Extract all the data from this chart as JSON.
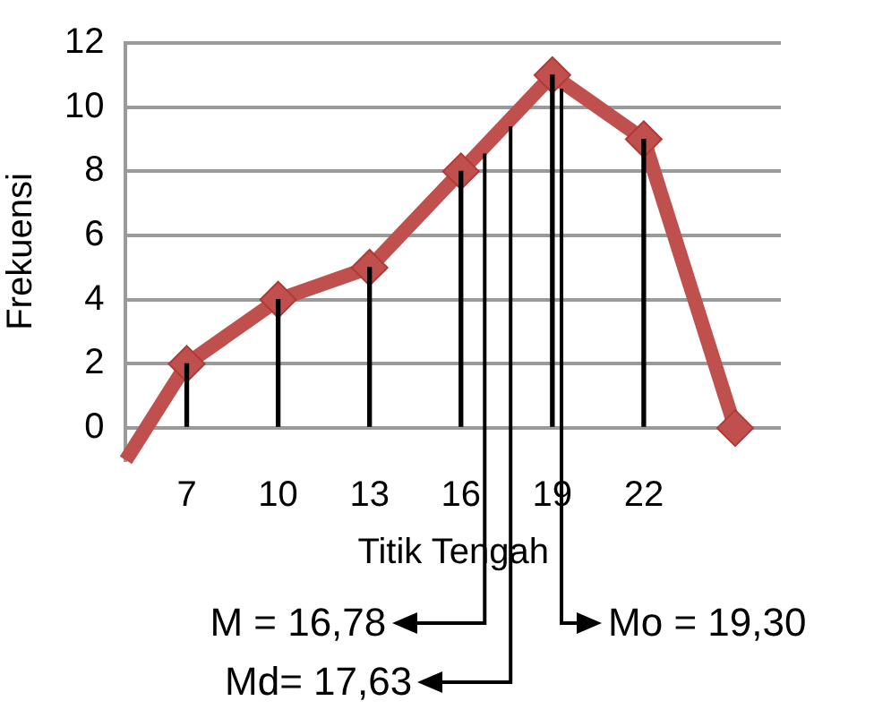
{
  "chart_data": {
    "type": "line",
    "xlabel": "Titik Tengah",
    "ylabel": "Frekuensi",
    "x": [
      5,
      7,
      10,
      13,
      16,
      19,
      22,
      25
    ],
    "series": [
      {
        "color": "#c0504d",
        "values": [
          -1,
          2,
          4,
          5,
          8,
          11,
          9,
          0
        ]
      },
      {
        "type": "bar",
        "color": "#000000",
        "values": [
          null,
          2,
          4,
          5,
          8,
          11,
          9,
          null
        ]
      }
    ],
    "xlim": [
      5,
      26.5
    ],
    "xticks": [
      7,
      10,
      13,
      16,
      19,
      22
    ],
    "ylim": [
      -1,
      12
    ],
    "yticks": [
      0,
      2,
      4,
      6,
      8,
      10,
      12
    ],
    "grid": "y",
    "legend": false,
    "marker": "diamond",
    "ref_lines": [
      {
        "axis": "x",
        "value": 16.78,
        "label": "M = 16,78"
      },
      {
        "axis": "x",
        "value": 17.63,
        "label": "Md= 17,63"
      },
      {
        "axis": "x",
        "value": 19.3,
        "label": "Mo = 19,30"
      }
    ]
  }
}
